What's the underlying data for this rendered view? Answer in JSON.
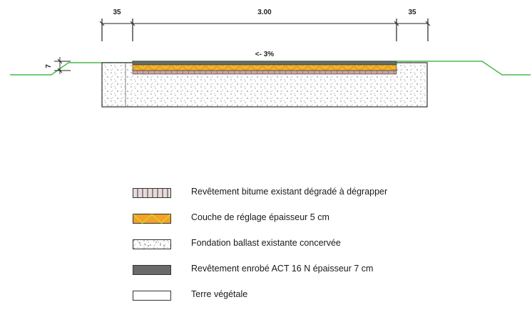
{
  "dimensions": {
    "left_shoulder": "35",
    "pavement_width": "3.00",
    "right_shoulder": "35",
    "layer_thickness": "7",
    "cross_slope": "<- 3%"
  },
  "colors": {
    "terrain_line": "#48b848",
    "dimension_line": "#222222",
    "existing_asphalt": "#a07070",
    "leveling_layer_fill": "#f2a12a",
    "leveling_layer_hatch": "#d8d820",
    "new_asphalt": "#6a6a6a",
    "ballast_speckle": "#8a8a8a",
    "topsoil": "#ffffff",
    "outline": "#333333"
  },
  "legend": [
    {
      "swatch": "existing-asphalt-hatch",
      "label": "Revêtement bitume existant dégradé à dégrapper"
    },
    {
      "swatch": "leveling-layer-hatch",
      "label": "Couche de réglage épaisseur 5 cm"
    },
    {
      "swatch": "ballast-speckle",
      "label": "Fondation ballast existante concervée"
    },
    {
      "swatch": "new-asphalt-solid",
      "label": "Revêtement enrobé ACT 16 N épaisseur 7 cm"
    },
    {
      "swatch": "topsoil-blank",
      "label": "Terre végétale"
    }
  ]
}
